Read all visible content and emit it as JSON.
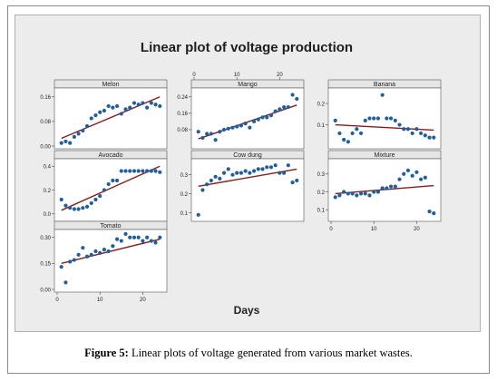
{
  "figure": {
    "title": "Linear plot of voltage production",
    "x_axis_title": "Days",
    "caption_label": "Figure 5:",
    "caption_text": "Linear plots of voltage generated from various market wastes."
  },
  "colors": {
    "point": "#1f5f9e",
    "line": "#8b1a1a",
    "panel_header": "#e6e6e6"
  },
  "chart_data": [
    {
      "type": "scatter",
      "title": "Melon",
      "xlim": [
        0,
        25
      ],
      "ylim": [
        0,
        0.18
      ],
      "yticks": [
        0.0,
        0.08,
        0.16
      ],
      "ytick_labels": [
        "0.00",
        "0.08",
        "0.16"
      ],
      "xticks": [],
      "xtick_labels": [],
      "x": [
        1,
        2,
        3,
        4,
        5,
        6,
        7,
        8,
        9,
        10,
        11,
        12,
        13,
        14,
        15,
        16,
        17,
        18,
        19,
        20,
        21,
        22,
        23,
        24
      ],
      "y": [
        0.01,
        0.015,
        0.01,
        0.03,
        0.04,
        0.05,
        0.065,
        0.09,
        0.1,
        0.11,
        0.115,
        0.13,
        0.125,
        0.13,
        0.105,
        0.12,
        0.125,
        0.14,
        0.135,
        0.14,
        0.125,
        0.14,
        0.135,
        0.13
      ],
      "fit": [
        0.025,
        0.16
      ]
    },
    {
      "type": "scatter",
      "title": "Mango",
      "xlim": [
        0,
        25
      ],
      "ylim": [
        0,
        0.27
      ],
      "yticks": [
        0.08,
        0.16,
        0.24
      ],
      "ytick_labels": [
        "0.08",
        "0.16",
        "0.24"
      ],
      "xticks": [
        0,
        10,
        20
      ],
      "xtick_labels": [
        "0",
        "10",
        "20"
      ],
      "x": [
        1,
        2,
        3,
        4,
        5,
        6,
        7,
        8,
        9,
        10,
        11,
        12,
        13,
        14,
        15,
        16,
        17,
        18,
        19,
        20,
        21,
        22,
        23,
        24
      ],
      "y": [
        0.07,
        0.04,
        0.06,
        0.06,
        0.03,
        0.07,
        0.08,
        0.085,
        0.09,
        0.095,
        0.1,
        0.11,
        0.09,
        0.12,
        0.13,
        0.14,
        0.14,
        0.15,
        0.17,
        0.18,
        0.19,
        0.19,
        0.25,
        0.23
      ],
      "fit": [
        0.035,
        0.2
      ]
    },
    {
      "type": "scatter",
      "title": "Banana",
      "xlim": [
        0,
        25
      ],
      "ylim": [
        0,
        0.26
      ],
      "yticks": [
        0.1,
        0.2
      ],
      "ytick_labels": [
        "0.1",
        "0.2"
      ],
      "xticks": [],
      "xtick_labels": [],
      "x": [
        1,
        2,
        3,
        4,
        5,
        6,
        7,
        8,
        9,
        10,
        11,
        12,
        13,
        14,
        15,
        16,
        17,
        18,
        19,
        20,
        21,
        22,
        23,
        24
      ],
      "y": [
        0.12,
        0.06,
        0.03,
        0.02,
        0.06,
        0.08,
        0.06,
        0.12,
        0.13,
        0.13,
        0.13,
        0.24,
        0.13,
        0.13,
        0.12,
        0.1,
        0.08,
        0.08,
        0.06,
        0.08,
        0.06,
        0.05,
        0.04,
        0.04
      ],
      "fit": [
        0.1,
        0.075
      ]
    },
    {
      "type": "scatter",
      "title": "Avocado",
      "xlim": [
        0,
        25
      ],
      "ylim": [
        -0.04,
        0.44
      ],
      "yticks": [
        0.0,
        0.2,
        0.4
      ],
      "ytick_labels": [
        "0.0",
        "0.2",
        "0.4"
      ],
      "xticks": [],
      "xtick_labels": [],
      "x": [
        1,
        2,
        3,
        4,
        5,
        6,
        7,
        8,
        9,
        10,
        11,
        12,
        13,
        14,
        15,
        16,
        17,
        18,
        19,
        20,
        21,
        22,
        23,
        24
      ],
      "y": [
        0.12,
        0.07,
        0.05,
        0.04,
        0.04,
        0.05,
        0.06,
        0.09,
        0.12,
        0.15,
        0.2,
        0.25,
        0.28,
        0.28,
        0.36,
        0.36,
        0.36,
        0.36,
        0.36,
        0.36,
        0.36,
        0.36,
        0.36,
        0.35
      ],
      "fit": [
        0.03,
        0.4
      ]
    },
    {
      "type": "scatter",
      "title": "Cow dung",
      "xlim": [
        0,
        25
      ],
      "ylim": [
        0.07,
        0.37
      ],
      "yticks": [
        0.1,
        0.2,
        0.3
      ],
      "ytick_labels": [
        "0.1",
        "0.2",
        "0.3"
      ],
      "xticks": [],
      "xtick_labels": [],
      "x": [
        1,
        2,
        3,
        4,
        5,
        6,
        7,
        8,
        9,
        10,
        11,
        12,
        13,
        14,
        15,
        16,
        17,
        18,
        19,
        20,
        21,
        22,
        23,
        24
      ],
      "y": [
        0.09,
        0.22,
        0.25,
        0.27,
        0.29,
        0.28,
        0.31,
        0.33,
        0.3,
        0.31,
        0.31,
        0.32,
        0.31,
        0.32,
        0.33,
        0.33,
        0.34,
        0.34,
        0.35,
        0.31,
        0.31,
        0.35,
        0.26,
        0.27
      ],
      "fit": [
        0.24,
        0.33
      ]
    },
    {
      "type": "scatter",
      "title": "Mixture",
      "xlim": [
        0,
        25
      ],
      "ylim": [
        0.05,
        0.37
      ],
      "yticks": [
        0.1,
        0.2,
        0.3
      ],
      "ytick_labels": [
        "0.1",
        "0.2",
        "0.3"
      ],
      "xticks": [
        0,
        10,
        20
      ],
      "xtick_labels": [
        "0",
        "10",
        "20"
      ],
      "x": [
        1,
        2,
        3,
        4,
        5,
        6,
        7,
        8,
        9,
        10,
        11,
        12,
        13,
        14,
        15,
        16,
        17,
        18,
        19,
        20,
        21,
        22,
        23,
        24
      ],
      "y": [
        0.17,
        0.18,
        0.2,
        0.19,
        0.19,
        0.18,
        0.19,
        0.19,
        0.18,
        0.2,
        0.2,
        0.22,
        0.22,
        0.23,
        0.23,
        0.27,
        0.3,
        0.32,
        0.29,
        0.31,
        0.27,
        0.28,
        0.09,
        0.08
      ],
      "fit": [
        0.19,
        0.235
      ]
    },
    {
      "type": "scatter",
      "title": "Tomato",
      "xlim": [
        0,
        25
      ],
      "ylim": [
        0.0,
        0.33
      ],
      "yticks": [
        0.0,
        0.15,
        0.3
      ],
      "ytick_labels": [
        "0.00",
        "0.15",
        "0.30"
      ],
      "xticks": [
        0,
        10,
        20
      ],
      "xtick_labels": [
        "0",
        "10",
        "20"
      ],
      "x": [
        1,
        2,
        3,
        4,
        5,
        6,
        7,
        8,
        9,
        10,
        11,
        12,
        13,
        14,
        15,
        16,
        17,
        18,
        19,
        20,
        21,
        22,
        23,
        24
      ],
      "y": [
        0.13,
        0.04,
        0.16,
        0.17,
        0.2,
        0.24,
        0.19,
        0.2,
        0.22,
        0.21,
        0.23,
        0.22,
        0.25,
        0.29,
        0.28,
        0.32,
        0.3,
        0.3,
        0.3,
        0.28,
        0.3,
        0.28,
        0.27,
        0.3
      ],
      "fit": [
        0.15,
        0.29
      ]
    }
  ]
}
